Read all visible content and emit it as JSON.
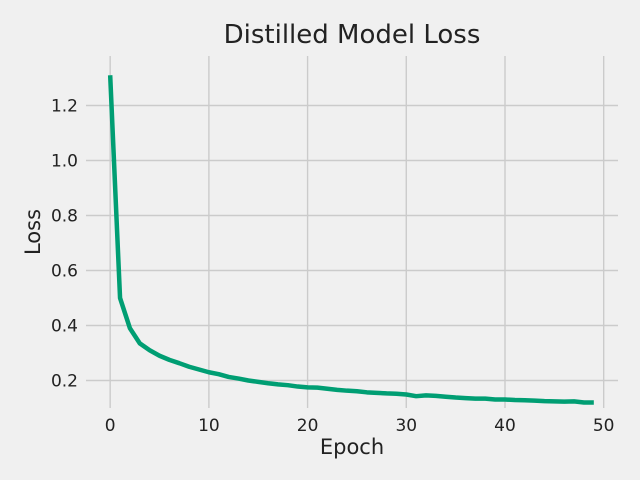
{
  "chart_data": {
    "type": "line",
    "title": "Distilled Model Loss",
    "xlabel": "Epoch",
    "ylabel": "Loss",
    "xlim": [
      -2.45,
      51.45
    ],
    "ylim": [
      0.1,
      1.38
    ],
    "xticks": [
      0,
      10,
      20,
      30,
      40,
      50
    ],
    "yticks": [
      0.2,
      0.4,
      0.6,
      0.8,
      1.0,
      1.2
    ],
    "ytick_labels": [
      "0.2",
      "0.4",
      "0.6",
      "0.8",
      "1.0",
      "1.2"
    ],
    "grid": true,
    "line_color": "#009e73",
    "series": [
      {
        "x": [
          0,
          1,
          2,
          3,
          4,
          5,
          6,
          7,
          8,
          9,
          10,
          11,
          12,
          13,
          14,
          15,
          16,
          17,
          18,
          19,
          20,
          21,
          22,
          23,
          24,
          25,
          26,
          27,
          28,
          29,
          30,
          31,
          32,
          33,
          34,
          35,
          36,
          37,
          38,
          39,
          40,
          41,
          42,
          43,
          44,
          45,
          46,
          47,
          48,
          49
        ],
        "values": [
          1.31,
          0.5,
          0.39,
          0.335,
          0.31,
          0.29,
          0.275,
          0.263,
          0.25,
          0.24,
          0.23,
          0.223,
          0.213,
          0.207,
          0.2,
          0.195,
          0.19,
          0.186,
          0.183,
          0.178,
          0.175,
          0.174,
          0.17,
          0.166,
          0.163,
          0.161,
          0.157,
          0.155,
          0.153,
          0.152,
          0.149,
          0.143,
          0.146,
          0.144,
          0.141,
          0.138,
          0.136,
          0.134,
          0.134,
          0.131,
          0.131,
          0.129,
          0.128,
          0.127,
          0.125,
          0.124,
          0.123,
          0.124,
          0.12,
          0.12
        ]
      }
    ]
  }
}
